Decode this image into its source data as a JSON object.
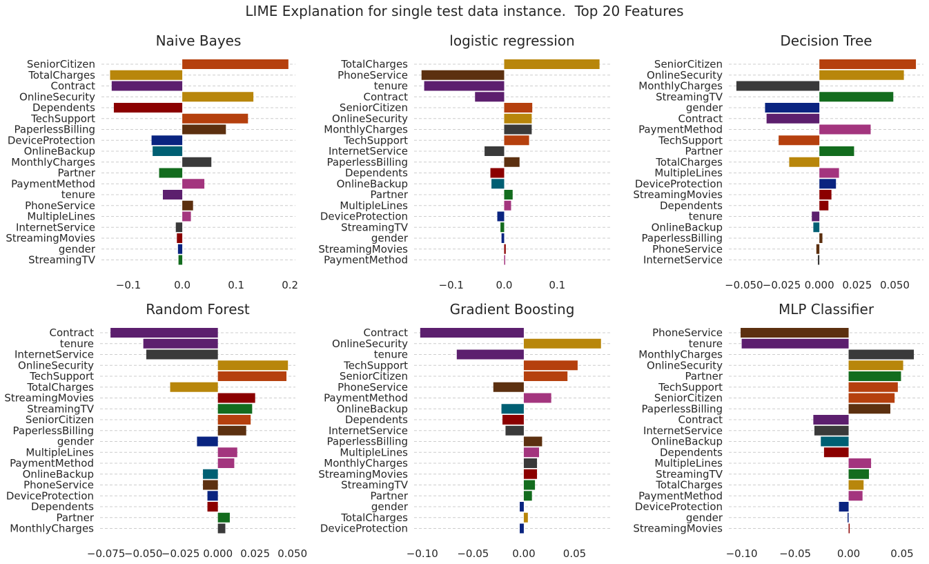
{
  "suptitle": "LIME Explanation for single test data instance.  Top 20 Features",
  "chart_data": [
    {
      "type": "bar",
      "orientation": "horizontal",
      "title": "Naive Bayes",
      "grid": "horizontal dashed",
      "xlim": [
        -0.15,
        0.21
      ],
      "xticks": [
        -0.1,
        0.0,
        0.1,
        0.2
      ],
      "xtick_labels": [
        "−0.1",
        "0.0",
        "0.1",
        "0.2"
      ],
      "bars": [
        {
          "feature": "SeniorCitizen",
          "value": 0.197,
          "color": "#b5400e"
        },
        {
          "feature": "TotalCharges",
          "value": -0.134,
          "color": "#b8860b"
        },
        {
          "feature": "Contract",
          "value": -0.131,
          "color": "#5c1f6e"
        },
        {
          "feature": "OnlineSecurity",
          "value": 0.132,
          "color": "#b8860b"
        },
        {
          "feature": "Dependents",
          "value": -0.127,
          "color": "#8b0000"
        },
        {
          "feature": "TechSupport",
          "value": 0.122,
          "color": "#b5400e"
        },
        {
          "feature": "PaperlessBilling",
          "value": 0.081,
          "color": "#5c3010"
        },
        {
          "feature": "DeviceProtection",
          "value": -0.057,
          "color": "#0a2480"
        },
        {
          "feature": "OnlineBackup",
          "value": -0.055,
          "color": "#005f73"
        },
        {
          "feature": "MonthlyCharges",
          "value": 0.054,
          "color": "#3a3a3a"
        },
        {
          "feature": "Partner",
          "value": -0.043,
          "color": "#136c1e"
        },
        {
          "feature": "PaymentMethod",
          "value": 0.041,
          "color": "#a3357e"
        },
        {
          "feature": "tenure",
          "value": -0.036,
          "color": "#5c1f6e"
        },
        {
          "feature": "PhoneService",
          "value": 0.02,
          "color": "#5c3010"
        },
        {
          "feature": "MultipleLines",
          "value": 0.016,
          "color": "#a3357e"
        },
        {
          "feature": "InternetService",
          "value": -0.012,
          "color": "#3a3a3a"
        },
        {
          "feature": "StreamingMovies",
          "value": -0.01,
          "color": "#8b0000"
        },
        {
          "feature": "gender",
          "value": -0.008,
          "color": "#0a2480"
        },
        {
          "feature": "StreamingTV",
          "value": -0.007,
          "color": "#136c1e"
        }
      ]
    },
    {
      "type": "bar",
      "orientation": "horizontal",
      "title": "logistic regression",
      "grid": "horizontal dashed",
      "xlim": [
        -0.17,
        0.2
      ],
      "xticks": [
        -0.1,
        0.0,
        0.1
      ],
      "xtick_labels": [
        "−0.1",
        "0.0",
        "0.1"
      ],
      "bars": [
        {
          "feature": "TotalCharges",
          "value": 0.18,
          "color": "#b8860b"
        },
        {
          "feature": "PhoneService",
          "value": -0.156,
          "color": "#5c3010"
        },
        {
          "feature": "tenure",
          "value": -0.151,
          "color": "#5c1f6e"
        },
        {
          "feature": "Contract",
          "value": -0.055,
          "color": "#5c1f6e"
        },
        {
          "feature": "SeniorCitizen",
          "value": 0.053,
          "color": "#b5400e"
        },
        {
          "feature": "OnlineSecurity",
          "value": 0.052,
          "color": "#b8860b"
        },
        {
          "feature": "MonthlyCharges",
          "value": 0.052,
          "color": "#3a3a3a"
        },
        {
          "feature": "TechSupport",
          "value": 0.047,
          "color": "#b5400e"
        },
        {
          "feature": "InternetService",
          "value": -0.037,
          "color": "#3a3a3a"
        },
        {
          "feature": "PaperlessBilling",
          "value": 0.029,
          "color": "#5c3010"
        },
        {
          "feature": "Dependents",
          "value": -0.026,
          "color": "#8b0000"
        },
        {
          "feature": "OnlineBackup",
          "value": -0.024,
          "color": "#005f73"
        },
        {
          "feature": "Partner",
          "value": 0.016,
          "color": "#136c1e"
        },
        {
          "feature": "MultipleLines",
          "value": 0.013,
          "color": "#a3357e"
        },
        {
          "feature": "DeviceProtection",
          "value": -0.013,
          "color": "#0a2480"
        },
        {
          "feature": "StreamingTV",
          "value": -0.007,
          "color": "#136c1e"
        },
        {
          "feature": "gender",
          "value": -0.005,
          "color": "#0a2480"
        },
        {
          "feature": "StreamingMovies",
          "value": 0.003,
          "color": "#8b0000"
        },
        {
          "feature": "PaymentMethod",
          "value": 0.001,
          "color": "#a3357e"
        }
      ]
    },
    {
      "type": "bar",
      "orientation": "horizontal",
      "title": "Decision Tree",
      "grid": "horizontal dashed",
      "xlim": [
        -0.06,
        0.069
      ],
      "xticks": [
        -0.05,
        -0.025,
        0.0,
        0.025,
        0.05
      ],
      "xtick_labels": [
        "−0.050",
        "−0.025",
        "0.000",
        "0.025",
        "0.050"
      ],
      "bars": [
        {
          "feature": "SeniorCitizen",
          "value": 0.064,
          "color": "#b5400e"
        },
        {
          "feature": "OnlineSecurity",
          "value": 0.056,
          "color": "#b8860b"
        },
        {
          "feature": "MonthlyCharges",
          "value": -0.055,
          "color": "#3a3a3a"
        },
        {
          "feature": "StreamingTV",
          "value": 0.049,
          "color": "#136c1e"
        },
        {
          "feature": "gender",
          "value": -0.036,
          "color": "#0a2480"
        },
        {
          "feature": "Contract",
          "value": -0.035,
          "color": "#5c1f6e"
        },
        {
          "feature": "PaymentMethod",
          "value": 0.034,
          "color": "#a3357e"
        },
        {
          "feature": "TechSupport",
          "value": -0.027,
          "color": "#b5400e"
        },
        {
          "feature": "Partner",
          "value": 0.023,
          "color": "#136c1e"
        },
        {
          "feature": "TotalCharges",
          "value": -0.02,
          "color": "#b8860b"
        },
        {
          "feature": "MultipleLines",
          "value": 0.013,
          "color": "#a3357e"
        },
        {
          "feature": "DeviceProtection",
          "value": 0.011,
          "color": "#0a2480"
        },
        {
          "feature": "StreamingMovies",
          "value": 0.008,
          "color": "#8b0000"
        },
        {
          "feature": "Dependents",
          "value": 0.006,
          "color": "#8b0000"
        },
        {
          "feature": "tenure",
          "value": -0.005,
          "color": "#5c1f6e"
        },
        {
          "feature": "OnlineBackup",
          "value": -0.004,
          "color": "#005f73"
        },
        {
          "feature": "PaperlessBilling",
          "value": 0.002,
          "color": "#5c3010"
        },
        {
          "feature": "PhoneService",
          "value": -0.002,
          "color": "#5c3010"
        },
        {
          "feature": "InternetService",
          "value": -0.001,
          "color": "#3a3a3a"
        }
      ]
    },
    {
      "type": "bar",
      "orientation": "horizontal",
      "title": "Random Forest",
      "grid": "horizontal dashed",
      "xlim": [
        -0.079,
        0.052
      ],
      "xticks": [
        -0.075,
        -0.05,
        -0.025,
        0.0,
        0.025,
        0.05
      ],
      "xtick_labels": [
        "−0.075",
        "−0.050",
        "−0.025",
        "0.000",
        "0.025",
        "0.050"
      ],
      "bars": [
        {
          "feature": "Contract",
          "value": -0.072,
          "color": "#5c1f6e"
        },
        {
          "feature": "tenure",
          "value": -0.05,
          "color": "#5c1f6e"
        },
        {
          "feature": "InternetService",
          "value": -0.048,
          "color": "#3a3a3a"
        },
        {
          "feature": "OnlineSecurity",
          "value": 0.047,
          "color": "#b8860b"
        },
        {
          "feature": "TechSupport",
          "value": 0.046,
          "color": "#b5400e"
        },
        {
          "feature": "TotalCharges",
          "value": -0.032,
          "color": "#b8860b"
        },
        {
          "feature": "StreamingMovies",
          "value": 0.025,
          "color": "#8b0000"
        },
        {
          "feature": "StreamingTV",
          "value": 0.023,
          "color": "#136c1e"
        },
        {
          "feature": "SeniorCitizen",
          "value": 0.022,
          "color": "#b5400e"
        },
        {
          "feature": "PaperlessBilling",
          "value": 0.019,
          "color": "#5c3010"
        },
        {
          "feature": "gender",
          "value": -0.014,
          "color": "#0a2480"
        },
        {
          "feature": "MultipleLines",
          "value": 0.013,
          "color": "#a3357e"
        },
        {
          "feature": "PaymentMethod",
          "value": 0.011,
          "color": "#a3357e"
        },
        {
          "feature": "OnlineBackup",
          "value": -0.01,
          "color": "#005f73"
        },
        {
          "feature": "PhoneService",
          "value": -0.01,
          "color": "#5c3010"
        },
        {
          "feature": "DeviceProtection",
          "value": -0.007,
          "color": "#0a2480"
        },
        {
          "feature": "Dependents",
          "value": -0.007,
          "color": "#8b0000"
        },
        {
          "feature": "Partner",
          "value": 0.008,
          "color": "#136c1e"
        },
        {
          "feature": "MonthlyCharges",
          "value": 0.005,
          "color": "#3a3a3a"
        }
      ]
    },
    {
      "type": "bar",
      "orientation": "horizontal",
      "title": "Gradient Boosting",
      "grid": "horizontal dashed",
      "xlim": [
        -0.108,
        0.085
      ],
      "xticks": [
        -0.1,
        -0.05,
        0.0,
        0.05
      ],
      "xtick_labels": [
        "−0.10",
        "−0.05",
        "0.00",
        "0.05"
      ],
      "bars": [
        {
          "feature": "Contract",
          "value": -0.102,
          "color": "#5c1f6e"
        },
        {
          "feature": "OnlineSecurity",
          "value": 0.076,
          "color": "#b8860b"
        },
        {
          "feature": "tenure",
          "value": -0.066,
          "color": "#5c1f6e"
        },
        {
          "feature": "TechSupport",
          "value": 0.053,
          "color": "#b5400e"
        },
        {
          "feature": "SeniorCitizen",
          "value": 0.043,
          "color": "#b5400e"
        },
        {
          "feature": "PhoneService",
          "value": -0.03,
          "color": "#5c3010"
        },
        {
          "feature": "PaymentMethod",
          "value": 0.027,
          "color": "#a3357e"
        },
        {
          "feature": "OnlineBackup",
          "value": -0.022,
          "color": "#005f73"
        },
        {
          "feature": "Dependents",
          "value": -0.021,
          "color": "#8b0000"
        },
        {
          "feature": "InternetService",
          "value": -0.018,
          "color": "#3a3a3a"
        },
        {
          "feature": "PaperlessBilling",
          "value": 0.018,
          "color": "#5c3010"
        },
        {
          "feature": "MultipleLines",
          "value": 0.015,
          "color": "#a3357e"
        },
        {
          "feature": "MonthlyCharges",
          "value": 0.013,
          "color": "#3a3a3a"
        },
        {
          "feature": "StreamingMovies",
          "value": 0.013,
          "color": "#8b0000"
        },
        {
          "feature": "StreamingTV",
          "value": 0.011,
          "color": "#136c1e"
        },
        {
          "feature": "Partner",
          "value": 0.008,
          "color": "#136c1e"
        },
        {
          "feature": "gender",
          "value": -0.004,
          "color": "#0a2480"
        },
        {
          "feature": "TotalCharges",
          "value": 0.004,
          "color": "#b8860b"
        },
        {
          "feature": "DeviceProtection",
          "value": -0.004,
          "color": "#0a2480"
        }
      ]
    },
    {
      "type": "bar",
      "orientation": "horizontal",
      "title": "MLP Classifier",
      "grid": "horizontal dashed",
      "xlim": [
        -0.112,
        0.07
      ],
      "xticks": [
        -0.1,
        -0.05,
        0.0,
        0.05
      ],
      "xtick_labels": [
        "−0.10",
        "−0.05",
        "0.00",
        "0.05"
      ],
      "bars": [
        {
          "feature": "PhoneService",
          "value": -0.101,
          "color": "#5c3010"
        },
        {
          "feature": "tenure",
          "value": -0.1,
          "color": "#5c1f6e"
        },
        {
          "feature": "MonthlyCharges",
          "value": 0.061,
          "color": "#3a3a3a"
        },
        {
          "feature": "OnlineSecurity",
          "value": 0.051,
          "color": "#b8860b"
        },
        {
          "feature": "Partner",
          "value": 0.049,
          "color": "#136c1e"
        },
        {
          "feature": "TechSupport",
          "value": 0.046,
          "color": "#b5400e"
        },
        {
          "feature": "SeniorCitizen",
          "value": 0.043,
          "color": "#b5400e"
        },
        {
          "feature": "PaperlessBilling",
          "value": 0.039,
          "color": "#5c3010"
        },
        {
          "feature": "Contract",
          "value": -0.033,
          "color": "#5c1f6e"
        },
        {
          "feature": "InternetService",
          "value": -0.032,
          "color": "#3a3a3a"
        },
        {
          "feature": "OnlineBackup",
          "value": -0.026,
          "color": "#005f73"
        },
        {
          "feature": "Dependents",
          "value": -0.023,
          "color": "#8b0000"
        },
        {
          "feature": "MultipleLines",
          "value": 0.021,
          "color": "#a3357e"
        },
        {
          "feature": "StreamingTV",
          "value": 0.019,
          "color": "#136c1e"
        },
        {
          "feature": "TotalCharges",
          "value": 0.014,
          "color": "#b8860b"
        },
        {
          "feature": "PaymentMethod",
          "value": 0.013,
          "color": "#a3357e"
        },
        {
          "feature": "DeviceProtection",
          "value": -0.009,
          "color": "#0a2480"
        },
        {
          "feature": "gender",
          "value": -0.001,
          "color": "#0a2480"
        },
        {
          "feature": "StreamingMovies",
          "value": 0.0005,
          "color": "#8b0000"
        }
      ]
    }
  ]
}
